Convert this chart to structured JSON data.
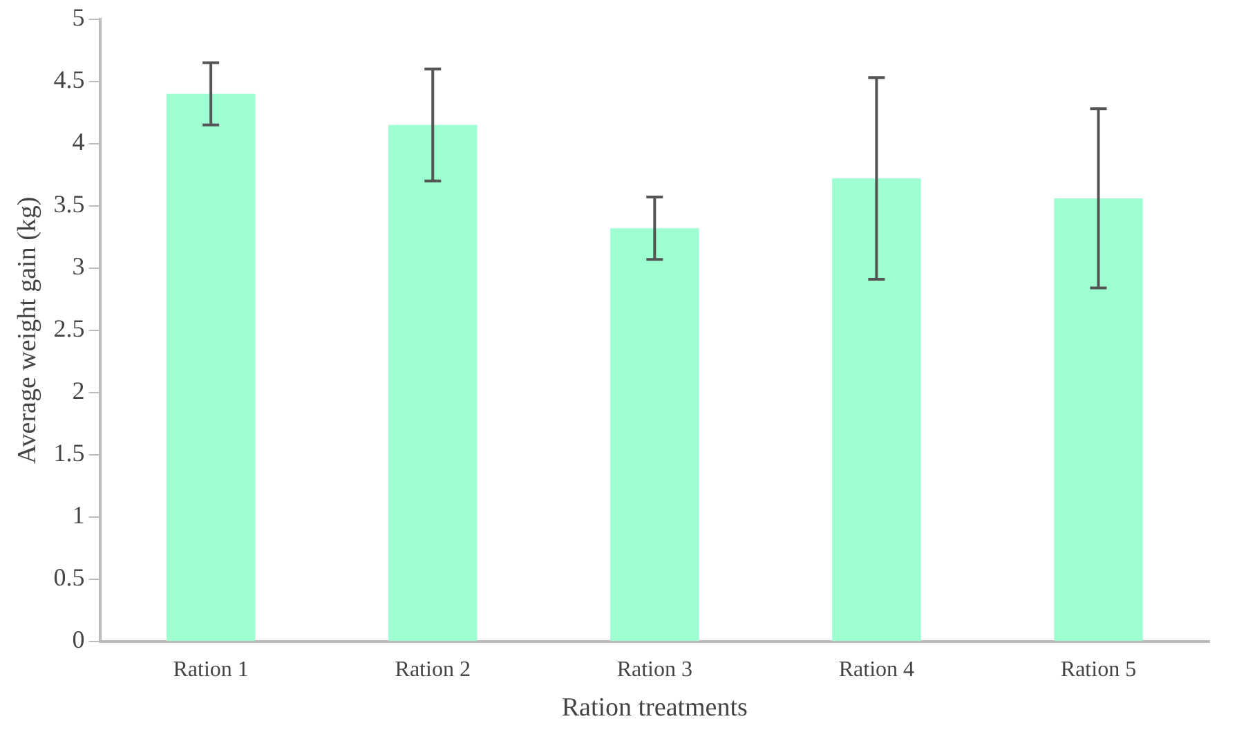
{
  "chart_data": {
    "type": "bar",
    "xlabel": "Ration treatments",
    "ylabel": "Average weight gain (kg)",
    "categories": [
      "Ration 1",
      "Ration 2",
      "Ration 3",
      "Ration 4",
      "Ration 5"
    ],
    "values": [
      4.4,
      4.15,
      3.32,
      3.72,
      3.56
    ],
    "errors": [
      0.25,
      0.45,
      0.25,
      0.81,
      0.72
    ],
    "color": "#9effd0",
    "ylim": [
      0,
      5
    ],
    "yticks": [
      0,
      0.5,
      1,
      1.5,
      2,
      2.5,
      3,
      3.5,
      4,
      4.5,
      5
    ],
    "grid": false,
    "legend": false
  }
}
